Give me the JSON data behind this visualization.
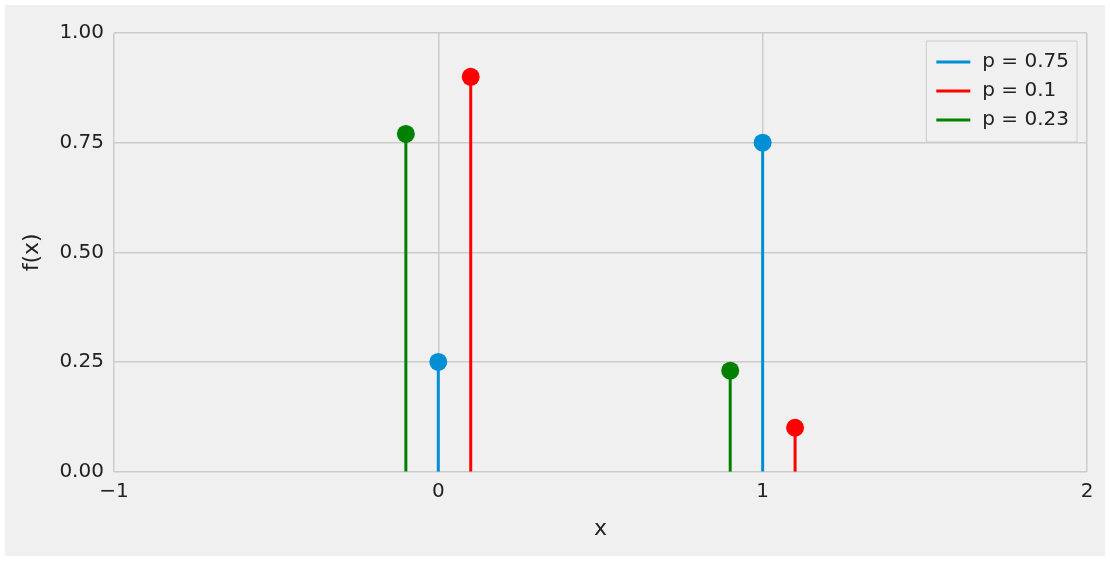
{
  "chart_data": {
    "type": "lollipop",
    "xlabel": "x",
    "ylabel": "f(x)",
    "series": [
      {
        "name": "p = 0.75",
        "color": "#008fd5",
        "x": [
          0,
          1
        ],
        "values": [
          0.25,
          0.75
        ]
      },
      {
        "name": "p = 0.1",
        "color": "#ff0000",
        "x": [
          0.1,
          1.1
        ],
        "values": [
          0.9,
          0.1
        ]
      },
      {
        "name": "p = 0.23",
        "color": "#008000",
        "x": [
          -0.1,
          0.9
        ],
        "values": [
          0.77,
          0.23
        ]
      }
    ],
    "xlim": [
      -1,
      2
    ],
    "xticks": [
      {
        "value": -1,
        "label": "−1"
      },
      0,
      1,
      2
    ],
    "ylim": [
      0,
      1
    ],
    "yticks": [
      {
        "value": 0,
        "label": "0.00"
      },
      {
        "value": 0.25,
        "label": "0.25"
      },
      {
        "value": 0.5,
        "label": "0.50"
      },
      {
        "value": 0.75,
        "label": "0.75"
      },
      {
        "value": 1,
        "label": "1.00"
      }
    ],
    "grid": true,
    "legend": "top right",
    "marker": "circle"
  }
}
